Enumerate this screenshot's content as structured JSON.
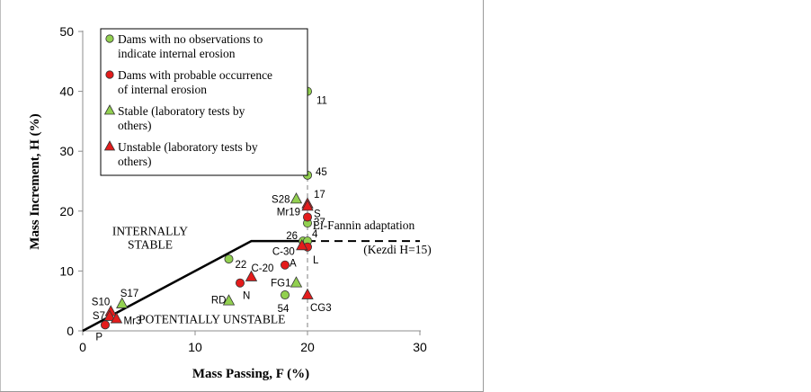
{
  "chart_data": {
    "type": "scatter",
    "xlabel": "Mass Passing, F (%)",
    "ylabel": "Mass Increment, H (%)",
    "xlim": [
      0,
      30
    ],
    "ylim": [
      0,
      50
    ],
    "x_ticks": [
      "0",
      "10",
      "20",
      "30"
    ],
    "y_ticks": [
      "0",
      "10",
      "20",
      "30",
      "40",
      "50"
    ],
    "grid": false,
    "legend_position": "top-left",
    "legend": [
      {
        "label": "Dams with no observations to indicate internal erosion",
        "lines": [
          "Dams with no observations to",
          "indicate internal erosion"
        ],
        "marker": "circle",
        "color": "#92d050"
      },
      {
        "label": "Dams with probable occurrence of internal erosion",
        "lines": [
          "Dams with probable occurrence",
          "of internal erosion"
        ],
        "marker": "circle",
        "color": "#e31c1c"
      },
      {
        "label": "Stable (laboratory tests by others)",
        "lines": [
          "Stable (laboratory tests by",
          "others)"
        ],
        "marker": "triangle",
        "color": "#92d050"
      },
      {
        "label": "Unstable (laboratory tests by others)",
        "lines": [
          "Unstable (laboratory tests by",
          "others)"
        ],
        "marker": "triangle",
        "color": "#e31c1c"
      }
    ],
    "boundary": {
      "x": [
        0,
        15,
        30
      ],
      "y": [
        0,
        15,
        15
      ]
    },
    "vertical_reference_x": 20,
    "series": [
      {
        "marker": "circle",
        "color": "#92d050",
        "points": [
          {
            "label": "11",
            "x": 20,
            "y": 40
          },
          {
            "label": "45",
            "x": 20,
            "y": 26
          },
          {
            "label": "37",
            "x": 20,
            "y": 18
          },
          {
            "label": "26",
            "x": 19.6,
            "y": 15
          },
          {
            "label": "4",
            "x": 20,
            "y": 15
          },
          {
            "label": "22",
            "x": 13,
            "y": 12
          },
          {
            "label": "54",
            "x": 18,
            "y": 6
          }
        ]
      },
      {
        "marker": "circle",
        "color": "#e31c1c",
        "points": [
          {
            "label": "S",
            "x": 20,
            "y": 19
          },
          {
            "label": "L",
            "x": 20,
            "y": 14
          },
          {
            "label": "A",
            "x": 18,
            "y": 11
          },
          {
            "label": "N",
            "x": 14,
            "y": 8
          },
          {
            "label": "P",
            "x": 2,
            "y": 1
          }
        ]
      },
      {
        "marker": "triangle",
        "color": "#92d050",
        "points": [
          {
            "label": "S28",
            "x": 19,
            "y": 22
          },
          {
            "label": "FG1",
            "x": 19,
            "y": 8
          },
          {
            "label": "RD",
            "x": 13,
            "y": 5
          },
          {
            "label": "S17",
            "x": 3.5,
            "y": 4.5
          }
        ]
      },
      {
        "marker": "triangle",
        "color": "#e31c1c",
        "points": [
          {
            "label": "17",
            "x": 20,
            "y": 21.2
          },
          {
            "label": "Mr19",
            "x": 20,
            "y": 20.8
          },
          {
            "label": "C-30",
            "x": 19.5,
            "y": 14.2
          },
          {
            "label": "C-20",
            "x": 15,
            "y": 9
          },
          {
            "label": "CG3",
            "x": 20,
            "y": 6
          },
          {
            "label": "S10",
            "x": 2.5,
            "y": 3.2
          },
          {
            "label": "S7",
            "x": 2.4,
            "y": 2.4
          },
          {
            "label": "Mr3",
            "x": 3,
            "y": 2
          }
        ]
      }
    ],
    "annotations": [
      {
        "lines": [
          "INTERNALLY",
          "STABLE"
        ],
        "x": 6,
        "y": 16,
        "style": "serif"
      },
      {
        "lines": [
          "POTENTIALLY UNSTABLE"
        ],
        "x": 11.5,
        "y": 1.3,
        "style": "serif"
      },
      {
        "lines": [
          "Li-Fannin adaptation"
        ],
        "x": 25,
        "y": 17,
        "style": "serif"
      },
      {
        "lines": [
          "(Kezdi H=15)"
        ],
        "x": 28,
        "y": 12.9,
        "style": "serif"
      }
    ]
  }
}
